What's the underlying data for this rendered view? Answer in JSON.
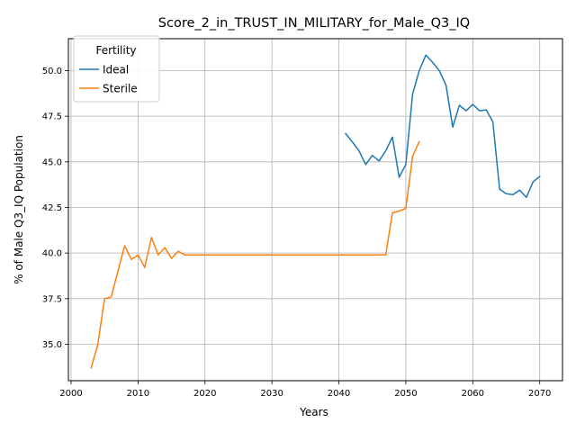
{
  "chart_data": {
    "type": "line",
    "title": "Score_2_in_TRUST_IN_MILITARY_for_Male_Q3_IQ",
    "xlabel": "Years",
    "ylabel": "% of Male Q3_IQ Population",
    "xlim": [
      1999.6,
      2073.4
    ],
    "ylim": [
      33.0,
      51.75
    ],
    "xticks": [
      2000,
      2010,
      2020,
      2030,
      2040,
      2050,
      2060,
      2070
    ],
    "yticks": [
      35.0,
      37.5,
      40.0,
      42.5,
      45.0,
      47.5,
      50.0
    ],
    "ytick_labels": [
      "35.0",
      "37.5",
      "40.0",
      "42.5",
      "45.0",
      "47.5",
      "50.0"
    ],
    "grid": true,
    "legend": {
      "title": "Fertility",
      "placement": "top-left"
    },
    "series": [
      {
        "name": "Ideal",
        "color": "#1f77b4",
        "x": [
          2041,
          2042,
          2043,
          2044,
          2045,
          2046,
          2047,
          2048,
          2049,
          2050,
          2051,
          2052,
          2053,
          2054,
          2055,
          2056,
          2057,
          2058,
          2059,
          2060,
          2061,
          2062,
          2063,
          2064,
          2065,
          2066,
          2067,
          2068,
          2069,
          2070
        ],
        "y": [
          46.55,
          46.1,
          45.6,
          44.85,
          45.35,
          45.05,
          45.6,
          46.35,
          44.15,
          44.85,
          48.7,
          50.0,
          50.85,
          50.45,
          50.0,
          49.2,
          46.9,
          48.1,
          47.8,
          48.15,
          47.8,
          47.85,
          47.2,
          43.5,
          43.25,
          43.2,
          43.45,
          43.05,
          43.9,
          44.2
        ]
      },
      {
        "name": "Sterile",
        "color": "#ff7f0e",
        "x": [
          2003,
          2004,
          2005,
          2006,
          2007,
          2008,
          2009,
          2010,
          2011,
          2012,
          2013,
          2014,
          2015,
          2016,
          2017,
          2018,
          2019,
          2020,
          2021,
          2022,
          2023,
          2024,
          2025,
          2026,
          2027,
          2028,
          2029,
          2030,
          2031,
          2032,
          2033,
          2034,
          2035,
          2036,
          2037,
          2038,
          2039,
          2040,
          2041,
          2042,
          2043,
          2044,
          2045,
          2046,
          2047,
          2048,
          2049,
          2050,
          2051,
          2052
        ],
        "y": [
          33.7,
          35.0,
          37.5,
          37.6,
          39.0,
          40.4,
          39.65,
          39.9,
          39.2,
          40.85,
          39.9,
          40.3,
          39.7,
          40.1,
          39.9,
          39.9,
          39.9,
          39.9,
          39.9,
          39.9,
          39.9,
          39.9,
          39.9,
          39.9,
          39.9,
          39.9,
          39.9,
          39.9,
          39.9,
          39.9,
          39.9,
          39.9,
          39.9,
          39.9,
          39.9,
          39.9,
          39.9,
          39.9,
          39.9,
          39.9,
          39.9,
          39.9,
          39.9,
          39.9,
          39.9,
          42.2,
          42.3,
          42.45,
          45.3,
          46.1
        ]
      }
    ]
  }
}
